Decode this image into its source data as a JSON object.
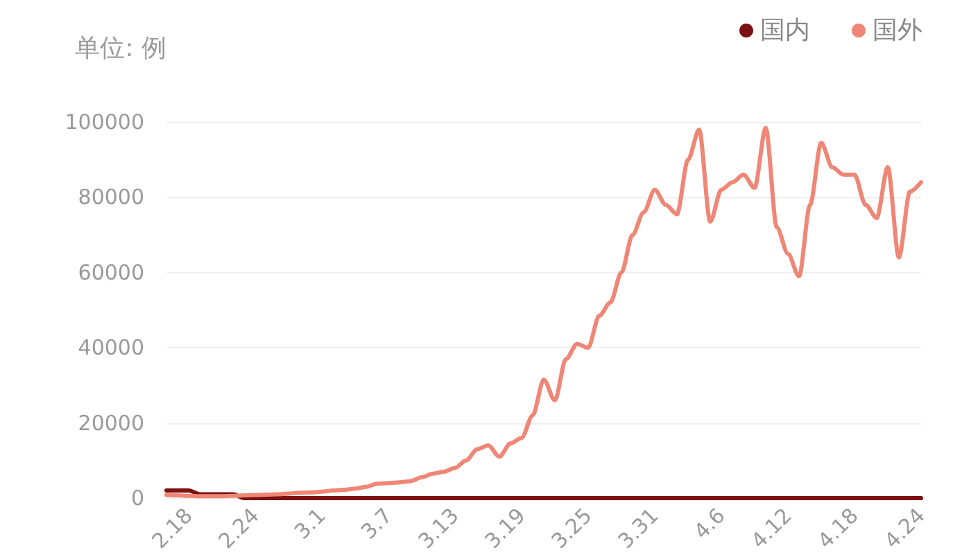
{
  "chart_data": {
    "type": "line",
    "ylabel": "单位: 例",
    "categories": [
      null,
      null,
      "2.18",
      null,
      null,
      null,
      null,
      null,
      "2.24",
      null,
      null,
      null,
      null,
      null,
      "3.1",
      null,
      null,
      null,
      null,
      null,
      "3.7",
      null,
      null,
      null,
      null,
      null,
      "3.13",
      null,
      null,
      null,
      null,
      null,
      "3.19",
      null,
      null,
      null,
      null,
      null,
      "3.25",
      null,
      null,
      null,
      null,
      null,
      "3.31",
      null,
      null,
      null,
      null,
      null,
      "4.6",
      null,
      null,
      null,
      null,
      null,
      "4.12",
      null,
      null,
      null,
      null,
      null,
      "4.18",
      null,
      null,
      null,
      null,
      null,
      "4.24"
    ],
    "series": [
      {
        "name": "国内",
        "color": "#7d1010",
        "values": [
          2000,
          2000,
          2000,
          1000,
          1000,
          1000,
          1000,
          0,
          0,
          0,
          0,
          0,
          0,
          0,
          0,
          0,
          0,
          0,
          0,
          0,
          0,
          0,
          0,
          0,
          0,
          0,
          0,
          0,
          0,
          0,
          0,
          0,
          0,
          0,
          0,
          0,
          0,
          0,
          0,
          0,
          0,
          0,
          0,
          0,
          0,
          0,
          0,
          0,
          0,
          0,
          0,
          0,
          0,
          0,
          0,
          0,
          0,
          0,
          0,
          0,
          0,
          0,
          0,
          0,
          0,
          0,
          0,
          0,
          0
        ]
      },
      {
        "name": "国外",
        "color": "#ef8676",
        "values": [
          800,
          700,
          600,
          500,
          500,
          500,
          600,
          700,
          800,
          900,
          1000,
          1200,
          1400,
          1500,
          1700,
          2000,
          2200,
          2500,
          3000,
          3800,
          4000,
          4200,
          4500,
          5500,
          6500,
          7000,
          8000,
          10000,
          13000,
          14000,
          11000,
          14500,
          16000,
          22000,
          31500,
          26000,
          37000,
          41000,
          40000,
          48500,
          52000,
          60000,
          70000,
          76000,
          82000,
          78000,
          75500,
          90000,
          98000,
          73500,
          82000,
          84000,
          86000,
          82500,
          98500,
          72000,
          65000,
          59000,
          78000,
          94500,
          88000,
          86000,
          86000,
          78000,
          74500,
          88000,
          64000,
          81500,
          84000
        ]
      }
    ],
    "ylim": [
      0,
      100000
    ],
    "yticks": [
      0,
      20000,
      40000,
      60000,
      80000,
      100000
    ],
    "grid": "y",
    "legend": "top right",
    "marker": "none",
    "line_style": "solid"
  }
}
